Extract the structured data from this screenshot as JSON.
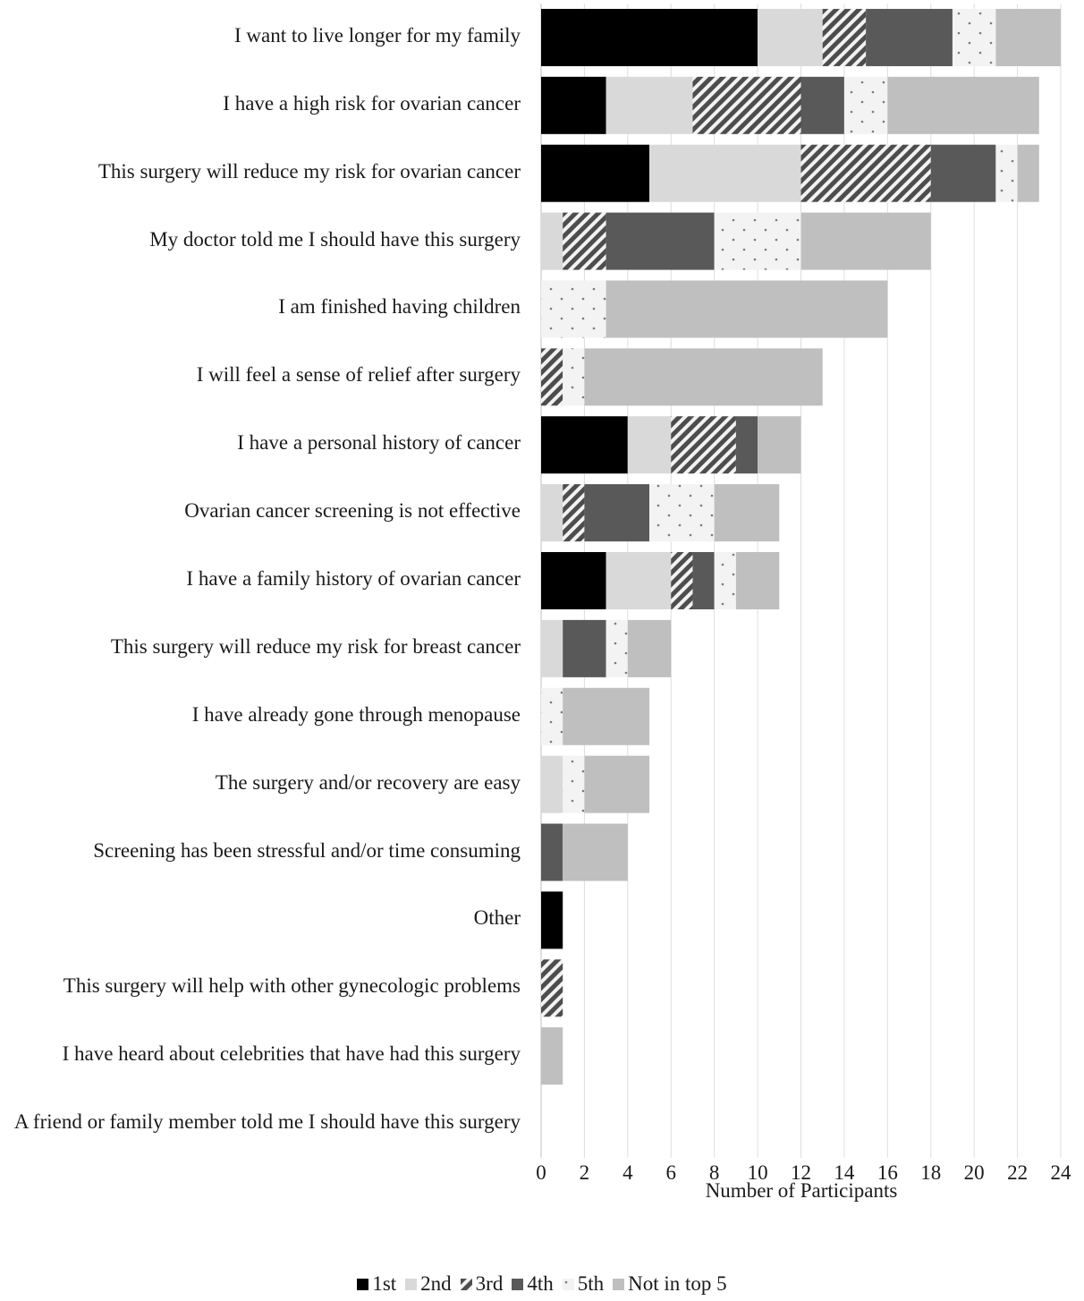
{
  "chart_data": {
    "type": "bar",
    "orientation": "horizontal",
    "stacked": true,
    "categories": [
      "I want to live longer for my family",
      "I have a high risk for ovarian cancer",
      "This surgery will reduce my risk for ovarian cancer",
      "My doctor told me I should have this surgery",
      "I am finished having children",
      "I will feel a sense of relief after surgery",
      "I have a personal history of cancer",
      "Ovarian cancer screening is not effective",
      "I have a family history of ovarian cancer",
      "This surgery will reduce my risk for breast cancer",
      "I have already gone through menopause",
      "The surgery and/or recovery are easy",
      "Screening has been stressful and/or time consuming",
      "Other",
      "This surgery will help with other gynecologic problems",
      "I have heard about celebrities that have had this surgery",
      "A friend or family member told me I should have this surgery"
    ],
    "series": [
      {
        "name": "1st",
        "color": "#000000",
        "pattern": "solid",
        "values": [
          10,
          3,
          5,
          0,
          0,
          0,
          4,
          0,
          3,
          0,
          0,
          0,
          0,
          1,
          0,
          0,
          0
        ]
      },
      {
        "name": "2nd",
        "color": "#d9d9d9",
        "pattern": "solid",
        "values": [
          3,
          4,
          7,
          1,
          0,
          0,
          2,
          1,
          3,
          1,
          0,
          1,
          0,
          0,
          0,
          0,
          0
        ]
      },
      {
        "name": "3rd",
        "color": "#595959",
        "pattern": "diagonal-stripes",
        "values": [
          2,
          5,
          6,
          2,
          0,
          1,
          3,
          1,
          1,
          0,
          0,
          0,
          0,
          0,
          1,
          0,
          0
        ]
      },
      {
        "name": "4th",
        "color": "#595959",
        "pattern": "solid",
        "values": [
          4,
          2,
          3,
          5,
          0,
          0,
          1,
          3,
          1,
          2,
          0,
          0,
          1,
          0,
          0,
          0,
          0
        ]
      },
      {
        "name": "5th",
        "color": "#f2f2f2",
        "pattern": "dots",
        "values": [
          2,
          2,
          1,
          4,
          3,
          1,
          0,
          3,
          1,
          1,
          1,
          1,
          0,
          0,
          0,
          0,
          0
        ]
      },
      {
        "name": "Not in top 5",
        "color": "#bfbfbf",
        "pattern": "solid",
        "values": [
          3,
          7,
          1,
          6,
          13,
          11,
          2,
          3,
          2,
          2,
          4,
          3,
          3,
          0,
          0,
          1,
          0
        ]
      }
    ],
    "xlabel": "Number of Participants",
    "xlim": [
      0,
      24
    ],
    "xticks": [
      "0",
      "2",
      "4",
      "6",
      "8",
      "10",
      "12",
      "14",
      "16",
      "18",
      "20",
      "22",
      "24"
    ],
    "grid": "vertical",
    "legend_position": "bottom"
  }
}
